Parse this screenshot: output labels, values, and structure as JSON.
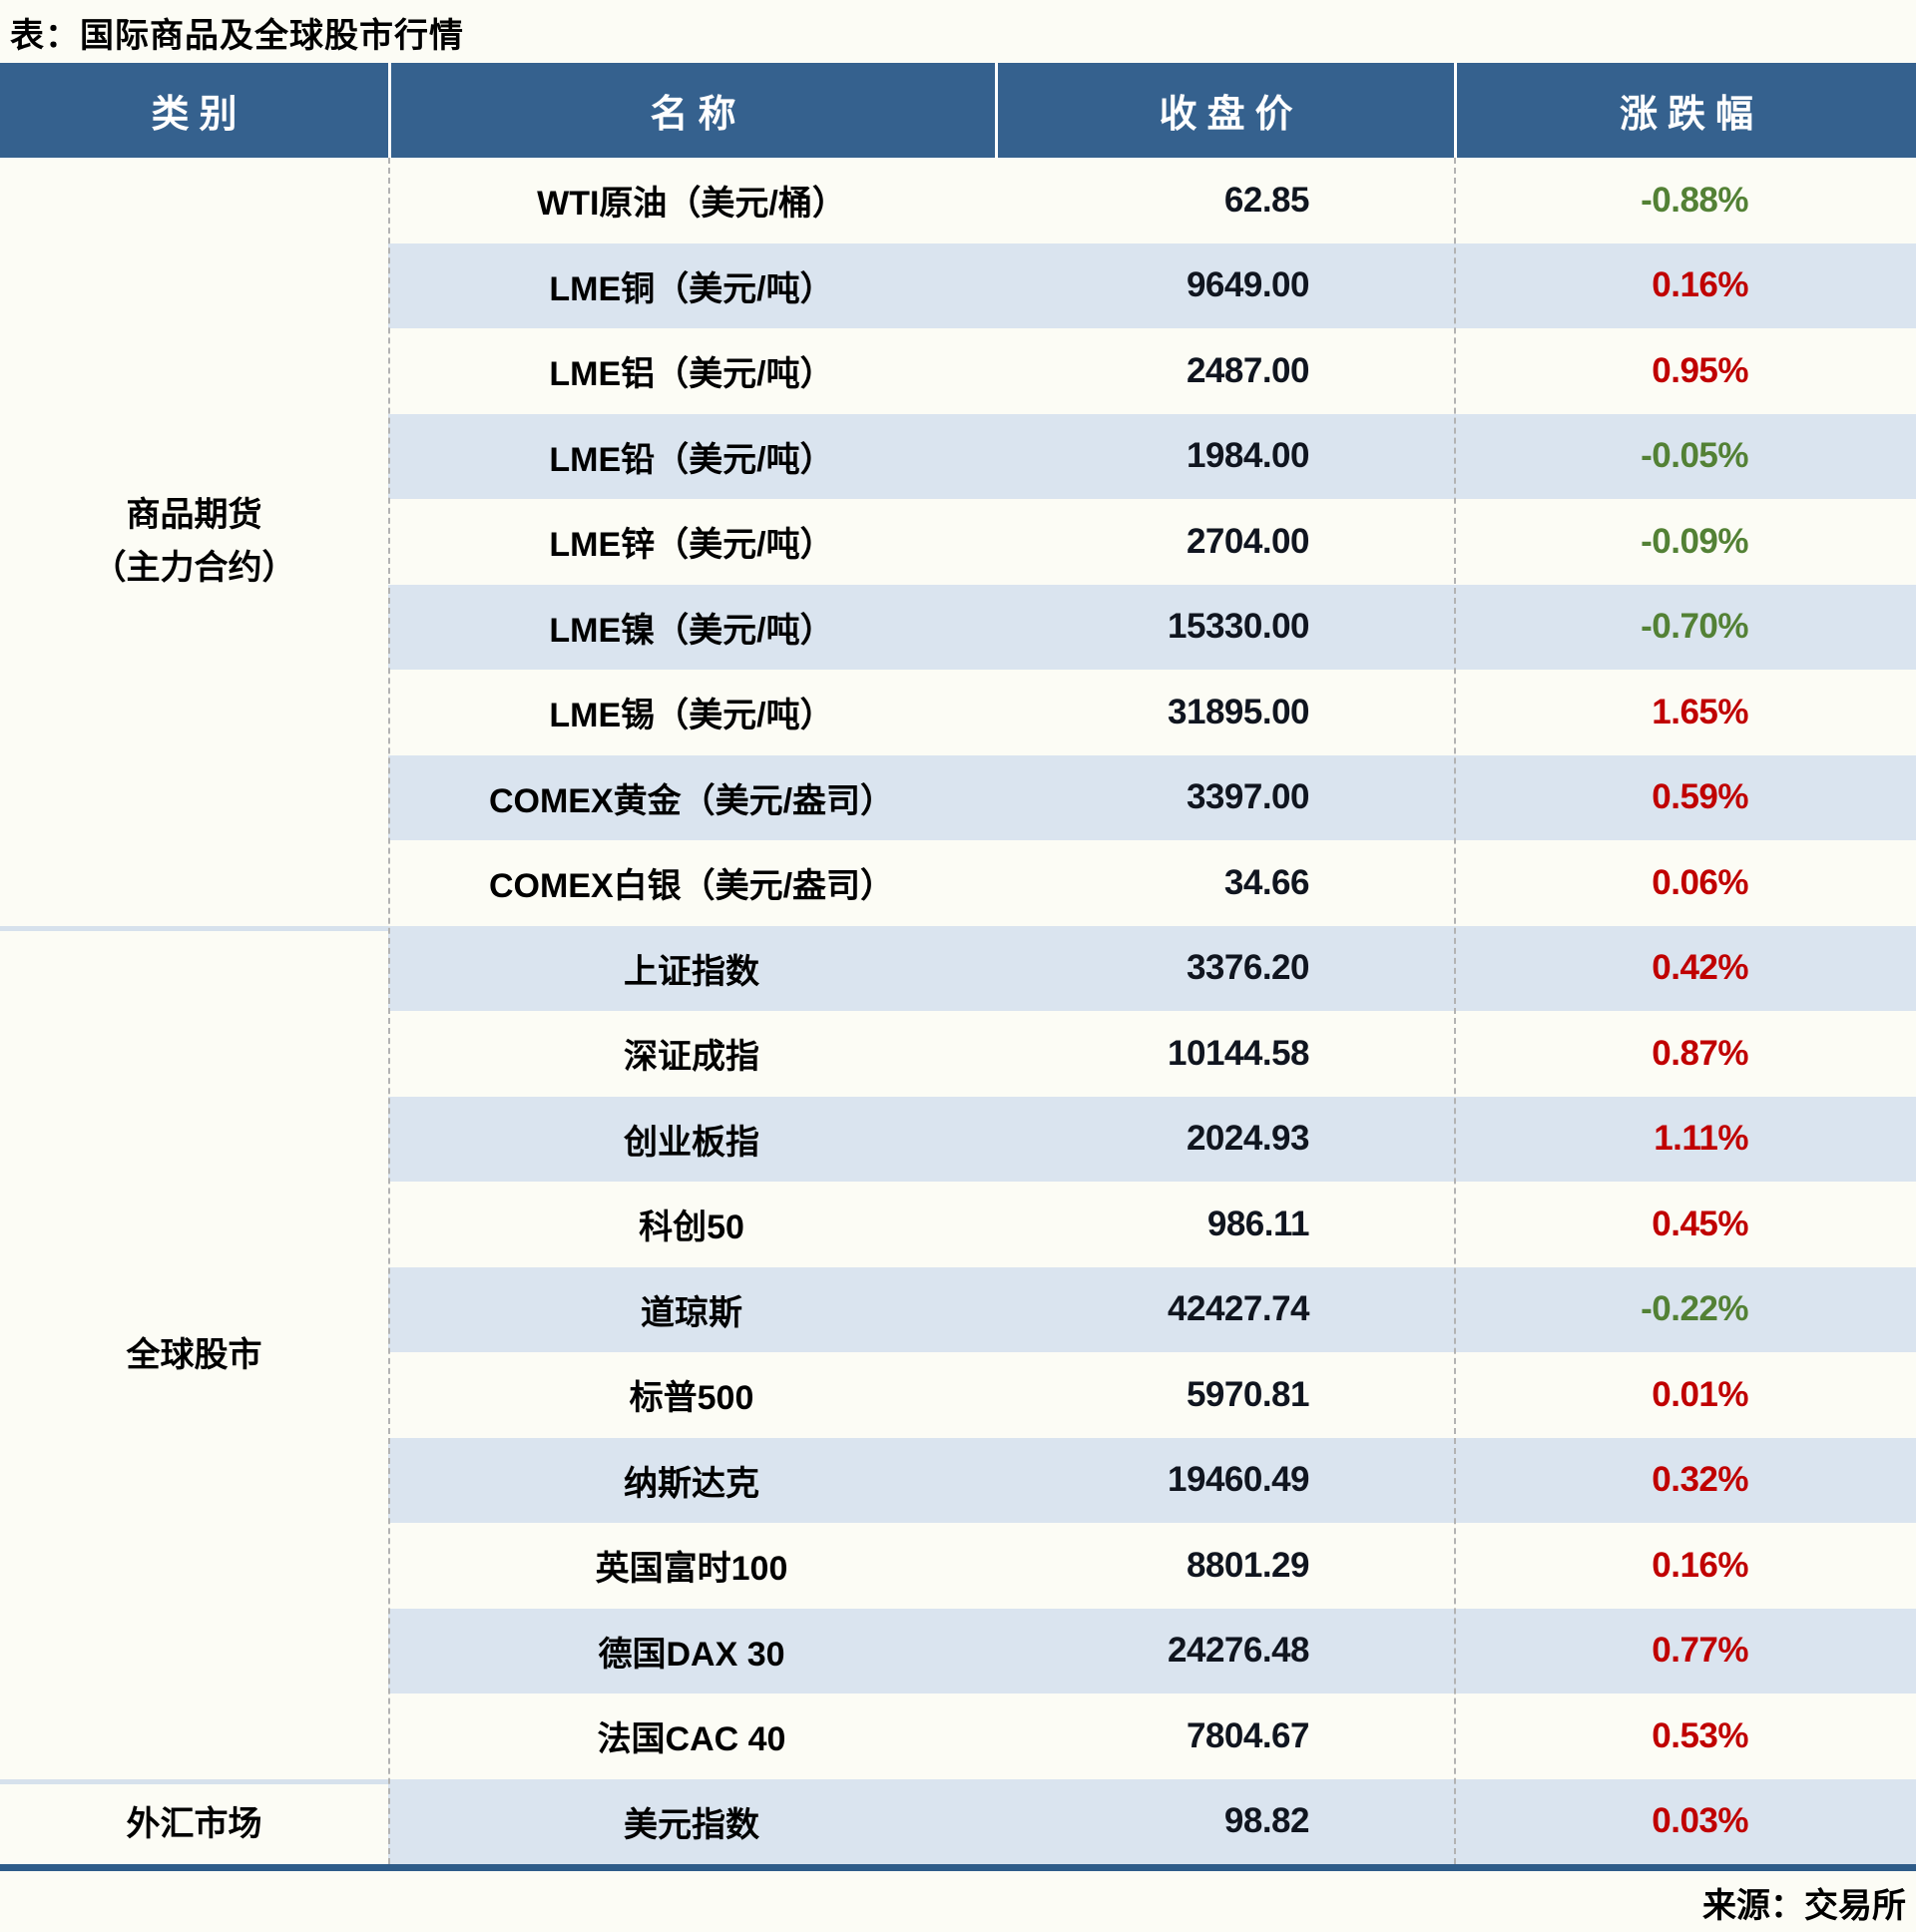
{
  "title": "表：国际商品及全球股市行情",
  "source": "来源：交易所",
  "columns": [
    "类别",
    "名称",
    "收盘价",
    "涨跌幅"
  ],
  "categories": [
    {
      "line1": "商品期货",
      "line2": "（主力合约）",
      "row_span": 9
    },
    {
      "line1": "全球股市",
      "row_span": 10
    },
    {
      "line1": "外汇市场",
      "row_span": 1
    }
  ],
  "colors": {
    "header_bg": "#35618E",
    "stripe_blue": "#DAE4EF",
    "up_red": "#C00000",
    "down_green": "#538135",
    "bottom_rule_blue": "#2E5C89"
  },
  "rows": [
    {
      "name": "WTI原油（美元/桶）",
      "close": "62.85",
      "change": "-0.88%",
      "dir": "down"
    },
    {
      "name": "LME铜（美元/吨）",
      "close": "9649.00",
      "change": "0.16%",
      "dir": "up"
    },
    {
      "name": "LME铝（美元/吨）",
      "close": "2487.00",
      "change": "0.95%",
      "dir": "up"
    },
    {
      "name": "LME铅（美元/吨）",
      "close": "1984.00",
      "change": "-0.05%",
      "dir": "down"
    },
    {
      "name": "LME锌（美元/吨）",
      "close": "2704.00",
      "change": "-0.09%",
      "dir": "down"
    },
    {
      "name": "LME镍（美元/吨）",
      "close": "15330.00",
      "change": "-0.70%",
      "dir": "down"
    },
    {
      "name": "LME锡（美元/吨）",
      "close": "31895.00",
      "change": "1.65%",
      "dir": "up"
    },
    {
      "name": "COMEX黄金（美元/盎司）",
      "close": "3397.00",
      "change": "0.59%",
      "dir": "up"
    },
    {
      "name": "COMEX白银（美元/盎司）",
      "close": "34.66",
      "change": "0.06%",
      "dir": "up"
    },
    {
      "name": "上证指数",
      "close": "3376.20",
      "change": "0.42%",
      "dir": "up"
    },
    {
      "name": "深证成指",
      "close": "10144.58",
      "change": "0.87%",
      "dir": "up"
    },
    {
      "name": "创业板指",
      "close": "2024.93",
      "change": "1.11%",
      "dir": "up"
    },
    {
      "name": "科创50",
      "close": "986.11",
      "change": "0.45%",
      "dir": "up"
    },
    {
      "name": "道琼斯",
      "close": "42427.74",
      "change": "-0.22%",
      "dir": "down"
    },
    {
      "name": "标普500",
      "close": "5970.81",
      "change": "0.01%",
      "dir": "up"
    },
    {
      "name": "纳斯达克",
      "close": "19460.49",
      "change": "0.32%",
      "dir": "up"
    },
    {
      "name": "英国富时100",
      "close": "8801.29",
      "change": "0.16%",
      "dir": "up"
    },
    {
      "name": "德国DAX 30",
      "close": "24276.48",
      "change": "0.77%",
      "dir": "up"
    },
    {
      "name": "法国CAC 40",
      "close": "7804.67",
      "change": "0.53%",
      "dir": "up"
    },
    {
      "name": "美元指数",
      "close": "98.82",
      "change": "0.03%",
      "dir": "up"
    }
  ],
  "chart_data": {
    "type": "table",
    "title": "表：国际商品及全球股市行情",
    "columns": [
      "类别",
      "名称",
      "收盘价",
      "涨跌幅"
    ],
    "rows": [
      [
        "商品期货（主力合约）",
        "WTI原油（美元/桶）",
        62.85,
        "-0.88%"
      ],
      [
        "商品期货（主力合约）",
        "LME铜（美元/吨）",
        9649.0,
        "0.16%"
      ],
      [
        "商品期货（主力合约）",
        "LME铝（美元/吨）",
        2487.0,
        "0.95%"
      ],
      [
        "商品期货（主力合约）",
        "LME铅（美元/吨）",
        1984.0,
        "-0.05%"
      ],
      [
        "商品期货（主力合约）",
        "LME锌（美元/吨）",
        2704.0,
        "-0.09%"
      ],
      [
        "商品期货（主力合约）",
        "LME镍（美元/吨）",
        15330.0,
        "-0.70%"
      ],
      [
        "商品期货（主力合约）",
        "LME锡（美元/吨）",
        31895.0,
        "1.65%"
      ],
      [
        "商品期货（主力合约）",
        "COMEX黄金（美元/盎司）",
        3397.0,
        "0.59%"
      ],
      [
        "商品期货（主力合约）",
        "COMEX白银（美元/盎司）",
        34.66,
        "0.06%"
      ],
      [
        "全球股市",
        "上证指数",
        3376.2,
        "0.42%"
      ],
      [
        "全球股市",
        "深证成指",
        10144.58,
        "0.87%"
      ],
      [
        "全球股市",
        "创业板指",
        2024.93,
        "1.11%"
      ],
      [
        "全球股市",
        "科创50",
        986.11,
        "0.45%"
      ],
      [
        "全球股市",
        "道琼斯",
        42427.74,
        "-0.22%"
      ],
      [
        "全球股市",
        "标普500",
        5970.81,
        "0.01%"
      ],
      [
        "全球股市",
        "纳斯达克",
        19460.49,
        "0.32%"
      ],
      [
        "全球股市",
        "英国富时100",
        8801.29,
        "0.16%"
      ],
      [
        "全球股市",
        "德国DAX 30",
        24276.48,
        "0.77%"
      ],
      [
        "全球股市",
        "法国CAC 40",
        7804.67,
        "0.53%"
      ],
      [
        "外汇市场",
        "美元指数",
        98.82,
        "0.03%"
      ]
    ],
    "notes": "红色=上涨(up), 绿色=下跌(down); 来源：交易所"
  }
}
